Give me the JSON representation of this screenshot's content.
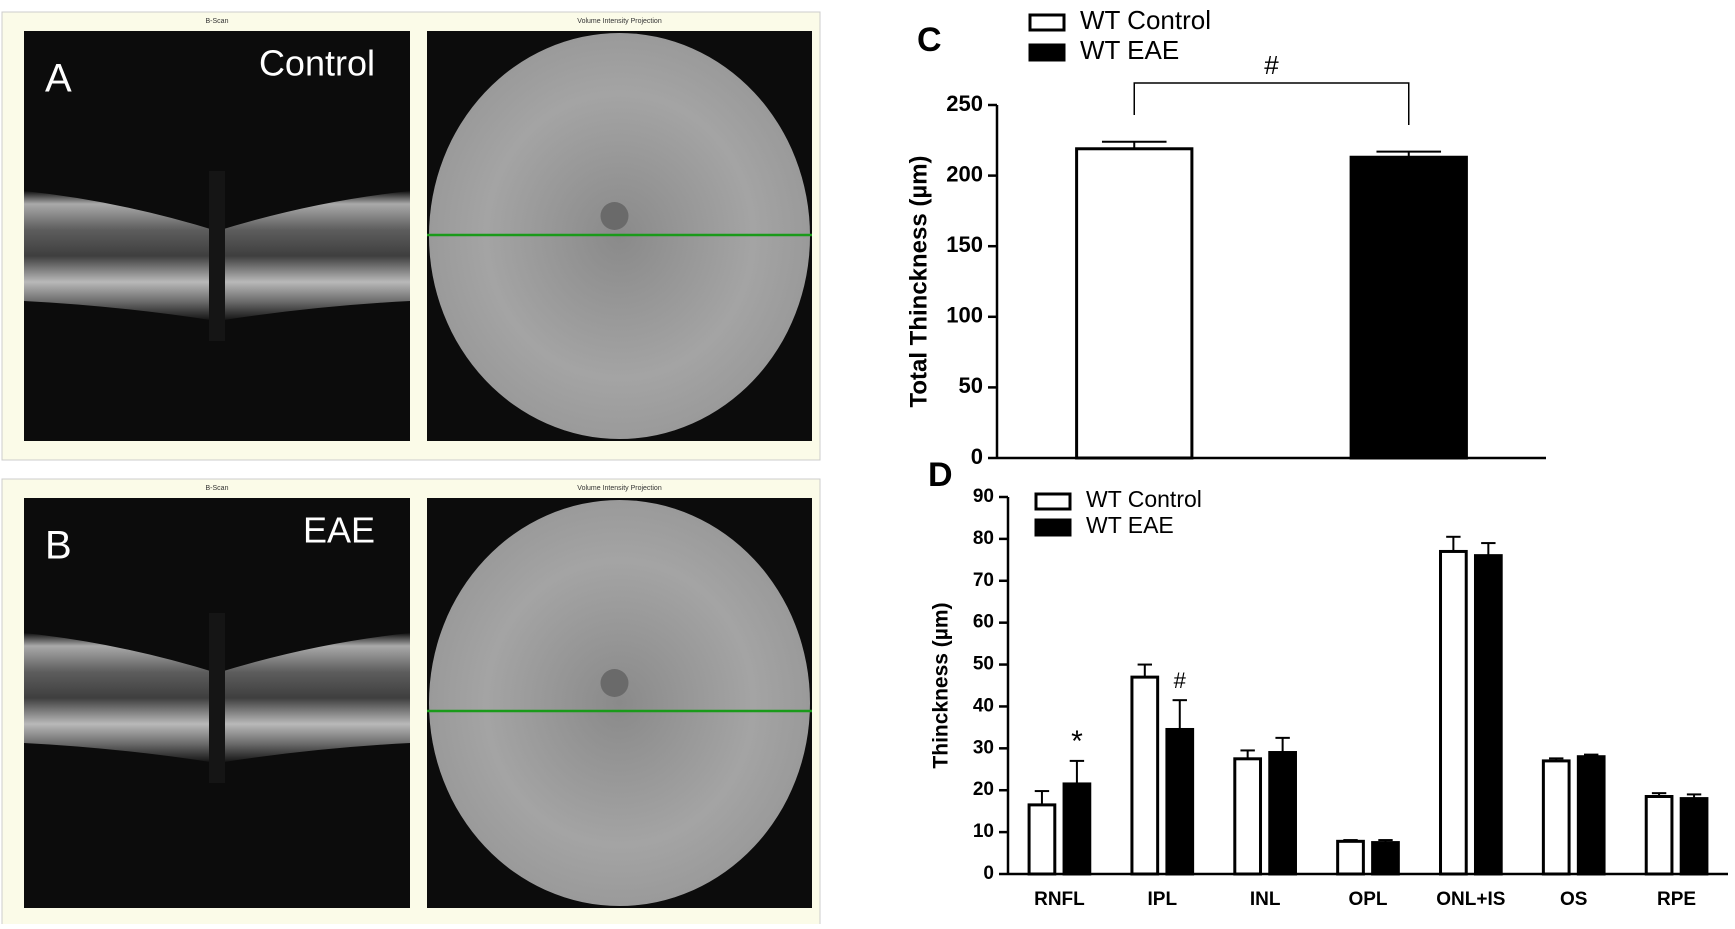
{
  "panels": [
    {
      "label": "A",
      "condition": "Control",
      "bscan_title": "B-Scan",
      "projection_title": "Volume Intensity Projection"
    },
    {
      "label": "B",
      "condition": "EAE",
      "bscan_title": "B-Scan",
      "projection_title": "Volume Intensity Projection"
    }
  ],
  "chart_data": [
    {
      "type": "bar",
      "panel_label": "C",
      "y_label": "Total Thinckness  (µm)",
      "series": [
        {
          "name": "WT Control",
          "color": "#ffffff",
          "values": [
            219
          ],
          "errors": [
            5
          ]
        },
        {
          "name": "WT EAE",
          "color": "#000000",
          "values": [
            213
          ],
          "errors": [
            4
          ]
        }
      ],
      "annotations": [
        "#"
      ],
      "ylim": [
        0,
        250
      ],
      "yticks": [
        0,
        50,
        100,
        150,
        200,
        250
      ]
    },
    {
      "type": "bar",
      "panel_label": "D",
      "y_label": "Thinckness  (µm)",
      "categories": [
        "RNFL",
        "IPL",
        "INL",
        "OPL",
        "ONL+IS",
        "OS",
        "RPE"
      ],
      "series": [
        {
          "name": "WT Control",
          "color": "#ffffff",
          "values": [
            16.5,
            47,
            27.5,
            7.8,
            77,
            27,
            18.5
          ],
          "errors": [
            3.3,
            3,
            2,
            0.3,
            3.5,
            0.6,
            0.8
          ]
        },
        {
          "name": "WT EAE",
          "color": "#000000",
          "values": [
            21.5,
            34.5,
            29,
            7.5,
            76,
            28,
            18
          ],
          "errors": [
            5.5,
            7,
            3.5,
            0.6,
            3,
            0.5,
            1
          ]
        }
      ],
      "annotations": [
        "*",
        "#"
      ],
      "ylim": [
        0,
        90
      ],
      "yticks": [
        0,
        10,
        20,
        30,
        40,
        50,
        60,
        70,
        80,
        90
      ]
    }
  ]
}
